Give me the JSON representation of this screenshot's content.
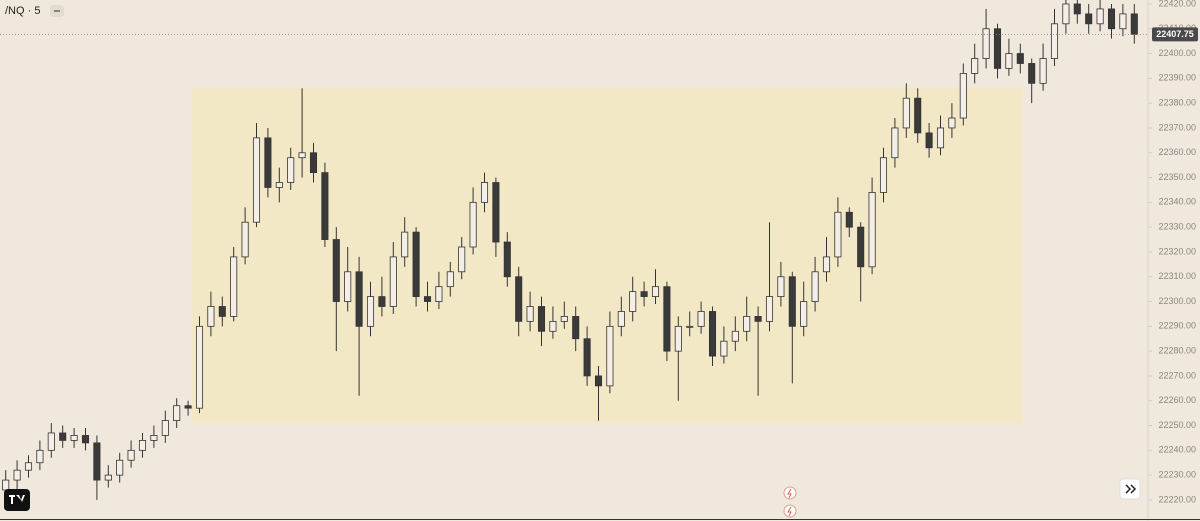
{
  "chart_data": {
    "type": "candlestick",
    "symbol": "/NQ · 5",
    "ylim": [
      22211.5,
      22421.6
    ],
    "yticks": [
      {
        "value": 22220,
        "label": "22220.00"
      },
      {
        "value": 22230,
        "label": "22230.00"
      },
      {
        "value": 22240,
        "label": "22240.00"
      },
      {
        "value": 22250,
        "label": "22250.00"
      },
      {
        "value": 22260,
        "label": "22260.00"
      },
      {
        "value": 22270,
        "label": "22270.00"
      },
      {
        "value": 22280,
        "label": "22280.00"
      },
      {
        "value": 22290,
        "label": "22290.00"
      },
      {
        "value": 22300,
        "label": "22300.00"
      },
      {
        "value": 22310,
        "label": "22310.00"
      },
      {
        "value": 22320,
        "label": "22320.00"
      },
      {
        "value": 22330,
        "label": "22330.00"
      },
      {
        "value": 22340,
        "label": "22340.00"
      },
      {
        "value": 22350,
        "label": "22350.00"
      },
      {
        "value": 22360,
        "label": "22360.00"
      },
      {
        "value": 22370,
        "label": "22370.00"
      },
      {
        "value": 22380,
        "label": "22380.00"
      },
      {
        "value": 22390,
        "label": "22390.00"
      },
      {
        "value": 22400,
        "label": "22400.00"
      },
      {
        "value": 22410,
        "label": "22410.00"
      },
      {
        "value": 22420,
        "label": "22420.00"
      }
    ],
    "box": {
      "top": 22386,
      "bottom": 22251,
      "color": "#f3e8c5"
    },
    "up_color": "#f4eee6",
    "down_color": "#3a3a3a",
    "open": [
      22224,
      22228,
      22232,
      22235,
      22240,
      22247,
      22244,
      22246,
      22243,
      22228,
      22230,
      22236,
      22240,
      22244,
      22246,
      22252,
      22258,
      22257,
      22290,
      22298,
      22294,
      22318,
      22332,
      22366,
      22346,
      22348,
      22358,
      22360,
      22352,
      22325,
      22300,
      22312,
      22290,
      22302,
      22298,
      22318,
      22328,
      22302,
      22300,
      22306,
      22312,
      22322,
      22340,
      22348,
      22324,
      22310,
      22292,
      22298,
      22288,
      22292,
      22294,
      22285,
      22270,
      22266,
      22290,
      22296,
      22304,
      22302,
      22306,
      22280,
      22290,
      22290,
      22296,
      22278,
      22284,
      22288,
      22294,
      22292,
      22302,
      22310,
      22290,
      22300,
      22312,
      22318,
      22336,
      22330,
      22314,
      22344,
      22358,
      22370,
      22382,
      22368,
      22362,
      22370,
      22374,
      22392,
      22398,
      22410,
      22394,
      22400,
      22396,
      22388,
      22398,
      22412,
      22420,
      22416,
      22412,
      22418,
      22410,
      22416
    ],
    "high": [
      22232,
      22236,
      22238,
      22244,
      22251,
      22250,
      22249,
      22249,
      22246,
      22234,
      22239,
      22244,
      22247,
      22250,
      22256,
      22261,
      22260,
      22294,
      22304,
      22302,
      22322,
      22338,
      22372,
      22370,
      22354,
      22362,
      22386,
      22364,
      22356,
      22330,
      22322,
      22318,
      22308,
      22310,
      22324,
      22334,
      22330,
      22308,
      22312,
      22316,
      22326,
      22346,
      22352,
      22350,
      22328,
      22314,
      22304,
      22302,
      22298,
      22300,
      22298,
      22290,
      22274,
      22296,
      22302,
      22310,
      22308,
      22313,
      22308,
      22294,
      22296,
      22300,
      22298,
      22290,
      22294,
      22302,
      22298,
      22332,
      22316,
      22312,
      22308,
      22318,
      22326,
      22342,
      22338,
      22332,
      22350,
      22362,
      22374,
      22388,
      22386,
      22372,
      22375,
      22380,
      22396,
      22404,
      22418,
      22412,
      22406,
      22404,
      22398,
      22404,
      22418,
      22424,
      22424,
      22420,
      22422,
      22420,
      22420,
      22420
    ],
    "low": [
      22218,
      22224,
      22229,
      22232,
      22237,
      22241,
      22241,
      22240,
      22220,
      22225,
      22227,
      22233,
      22237,
      22241,
      22243,
      22249,
      22254,
      22255,
      22286,
      22290,
      22292,
      22315,
      22330,
      22342,
      22340,
      22345,
      22350,
      22348,
      22322,
      22280,
      22296,
      22262,
      22286,
      22294,
      22295,
      22314,
      22298,
      22296,
      22297,
      22302,
      22309,
      22319,
      22336,
      22318,
      22306,
      22286,
      22288,
      22282,
      22285,
      22289,
      22280,
      22266,
      22252,
      22263,
      22286,
      22292,
      22298,
      22299,
      22276,
      22260,
      22286,
      22287,
      22274,
      22275,
      22280,
      22284,
      22262,
      22288,
      22298,
      22267,
      22286,
      22296,
      22308,
      22314,
      22326,
      22300,
      22311,
      22340,
      22354,
      22366,
      22364,
      22358,
      22359,
      22366,
      22371,
      22388,
      22394,
      22390,
      22391,
      22392,
      22380,
      22385,
      22395,
      22408,
      22412,
      22408,
      22409,
      22406,
      22407,
      22404
    ],
    "close": [
      22228,
      22232,
      22235,
      22240,
      22247,
      22244,
      22246,
      22243,
      22228,
      22230,
      22236,
      22240,
      22244,
      22246,
      22252,
      22258,
      22257,
      22290,
      22298,
      22294,
      22318,
      22332,
      22366,
      22346,
      22348,
      22358,
      22360,
      22352,
      22325,
      22300,
      22312,
      22290,
      22302,
      22298,
      22318,
      22328,
      22302,
      22300,
      22306,
      22312,
      22322,
      22340,
      22348,
      22324,
      22310,
      22292,
      22298,
      22288,
      22292,
      22294,
      22285,
      22270,
      22266,
      22290,
      22296,
      22304,
      22302,
      22306,
      22280,
      22290,
      22290,
      22296,
      22278,
      22284,
      22288,
      22294,
      22292,
      22302,
      22310,
      22290,
      22300,
      22312,
      22318,
      22336,
      22330,
      22314,
      22344,
      22358,
      22370,
      22382,
      22368,
      22362,
      22370,
      22374,
      22392,
      22398,
      22410,
      22394,
      22400,
      22396,
      22388,
      22398,
      22412,
      22420,
      22416,
      22412,
      22418,
      22410,
      22416,
      22407.75
    ]
  }
}
